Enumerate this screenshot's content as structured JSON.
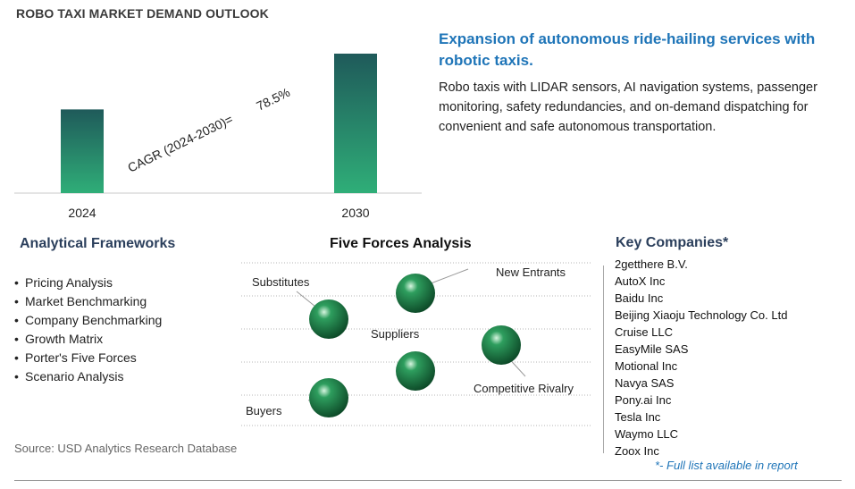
{
  "chart_data": {
    "type": "bar",
    "title": "ROBO TAXI MARKET DEMAND OUTLOOK",
    "categories": [
      "2024",
      "2030"
    ],
    "values": [
      0.6,
      1.0
    ],
    "cagr_label": "CAGR (2024-2030)=",
    "cagr_value": "78.5%",
    "colors": {
      "bar_top": "#1f5a5a",
      "bar_bottom": "#2fae78"
    }
  },
  "headline": "Expansion of autonomous ride-hailing services with robotic taxis.",
  "description": "Robo taxis with LIDAR sensors, AI navigation systems, passenger monitoring, safety redundancies, and on-demand dispatching for convenient and safe autonomous transportation.",
  "frameworks": {
    "title": "Analytical Frameworks",
    "items": [
      "Pricing Analysis",
      "Market Benchmarking",
      "Company Benchmarking",
      "Growth Matrix",
      "Porter's Five Forces",
      "Scenario Analysis"
    ]
  },
  "five_forces": {
    "title": "Five Forces Analysis",
    "labels": {
      "substitutes": "Substitutes",
      "new_entrants": "New Entrants",
      "suppliers": "Suppliers",
      "competitive_rivalry": "Competitive Rivalry",
      "buyers": "Buyers"
    },
    "sphere_color": "#2e9e5e"
  },
  "companies": {
    "title": "Key Companies*",
    "items": [
      "2getthere B.V.",
      "AutoX Inc",
      "Baidu Inc",
      "Beijing Xiaoju Technology Co. Ltd",
      "Cruise LLC",
      "EasyMile SAS",
      "Motional Inc",
      "Navya SAS",
      "Pony.ai Inc",
      "Tesla Inc",
      "Waymo LLC",
      "Zoox Inc"
    ],
    "note": "*- Full list available in report"
  },
  "source": "Source: USD Analytics Research Database"
}
